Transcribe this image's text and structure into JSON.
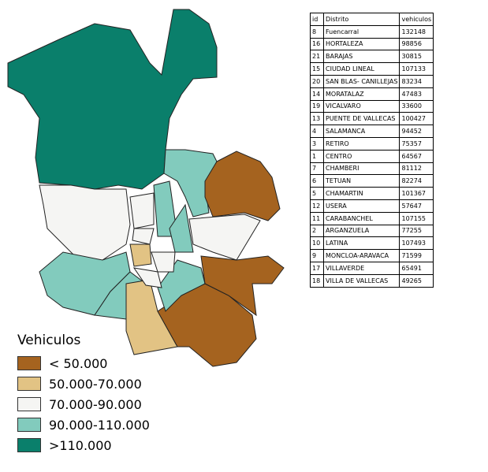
{
  "legend": {
    "title": "Vehiculos",
    "items": [
      {
        "label": "< 50.000",
        "color": "#a5631f"
      },
      {
        "label": "50.000-70.000",
        "color": "#e2c384"
      },
      {
        "label": "70.000-90.000",
        "color": "#f5f5f3"
      },
      {
        "label": "90.000-110.000",
        "color": "#82cbbd"
      },
      {
        "label": ">110.000",
        "color": "#0a7f6b"
      }
    ]
  },
  "table": {
    "header": [
      "id",
      "Distrito",
      "vehiculos"
    ],
    "rows": [
      [
        8,
        "Fuencarral",
        132148
      ],
      [
        16,
        "HORTALEZA",
        98856
      ],
      [
        21,
        "BARAJAS",
        30815
      ],
      [
        15,
        "CIUDAD LINEAL",
        107133
      ],
      [
        20,
        "SAN BLAS- CANILLEJAS",
        83234
      ],
      [
        14,
        "MORATALAZ",
        47483
      ],
      [
        19,
        "VICALVARO",
        33600
      ],
      [
        13,
        "PUENTE DE VALLECAS",
        100427
      ],
      [
        4,
        "SALAMANCA",
        94452
      ],
      [
        3,
        "RETIRO",
        75357
      ],
      [
        1,
        "CENTRO",
        64567
      ],
      [
        7,
        "CHAMBERI",
        81112
      ],
      [
        6,
        "TETUAN",
        82274
      ],
      [
        5,
        "CHAMARTIN",
        101367
      ],
      [
        12,
        "USERA",
        57647
      ],
      [
        11,
        "CARABANCHEL",
        107155
      ],
      [
        2,
        "ARGANZUELA",
        77255
      ],
      [
        10,
        "LATINA",
        107493
      ],
      [
        9,
        "MONCLOA-ARAVACA",
        71599
      ],
      [
        17,
        "VILLAVERDE",
        65491
      ],
      [
        18,
        "VILLA DE VALLECAS",
        49265
      ]
    ]
  }
}
